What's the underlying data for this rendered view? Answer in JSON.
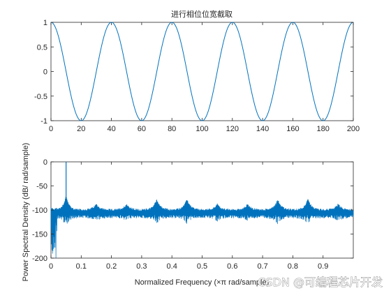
{
  "chart_data": [
    {
      "type": "line",
      "title": "进行相位位宽截取",
      "xlabel": "",
      "ylabel": "",
      "xlim": [
        0,
        200
      ],
      "ylim": [
        -1,
        1
      ],
      "xticks": [
        "0",
        "20",
        "40",
        "60",
        "80",
        "100",
        "120",
        "140",
        "160",
        "180",
        "200"
      ],
      "yticks": [
        "1",
        "0.5",
        "0",
        "-0.5",
        "-1"
      ],
      "grid": false,
      "series": [
        {
          "color": "#0072BD",
          "x": [
            0,
            10,
            20,
            30,
            40,
            50,
            60,
            70,
            80,
            90,
            100,
            110,
            120,
            130,
            140,
            150,
            160,
            170,
            180,
            190,
            200
          ],
          "y": [
            1,
            0,
            -1,
            0,
            1,
            0,
            -1,
            0,
            1,
            0,
            -1,
            0,
            1,
            0,
            -1,
            0,
            1,
            0,
            -1,
            0,
            1
          ]
        }
      ]
    },
    {
      "type": "line",
      "title": "",
      "xlabel": "Normalized Frequency  (×π rad/sample)",
      "ylabel": "Power Spectral Density (dB/ rad/sample)",
      "xlim": [
        0,
        1
      ],
      "ylim": [
        -200,
        0
      ],
      "xticks": [
        "0",
        "0.1",
        "0.2",
        "0.3",
        "0.4",
        "0.5",
        "0.6",
        "0.7",
        "0.8",
        "0.9"
      ],
      "yticks": [
        "0",
        "-50",
        "-100",
        "-150",
        "-200"
      ],
      "grid": false,
      "series": [
        {
          "color": "#0072BD",
          "peak": {
            "x": 0.05,
            "y": 0
          },
          "noise_floor": -105,
          "spur_peaks": [
            {
              "x": 0.15,
              "y": -93
            },
            {
              "x": 0.25,
              "y": -93
            },
            {
              "x": 0.35,
              "y": -83
            },
            {
              "x": 0.45,
              "y": -83
            },
            {
              "x": 0.55,
              "y": -93
            },
            {
              "x": 0.65,
              "y": -93
            },
            {
              "x": 0.75,
              "y": -83
            },
            {
              "x": 0.85,
              "y": -83
            },
            {
              "x": 0.95,
              "y": -93
            }
          ]
        }
      ]
    }
  ],
  "watermark": "CSDN @可编程芯片开发"
}
